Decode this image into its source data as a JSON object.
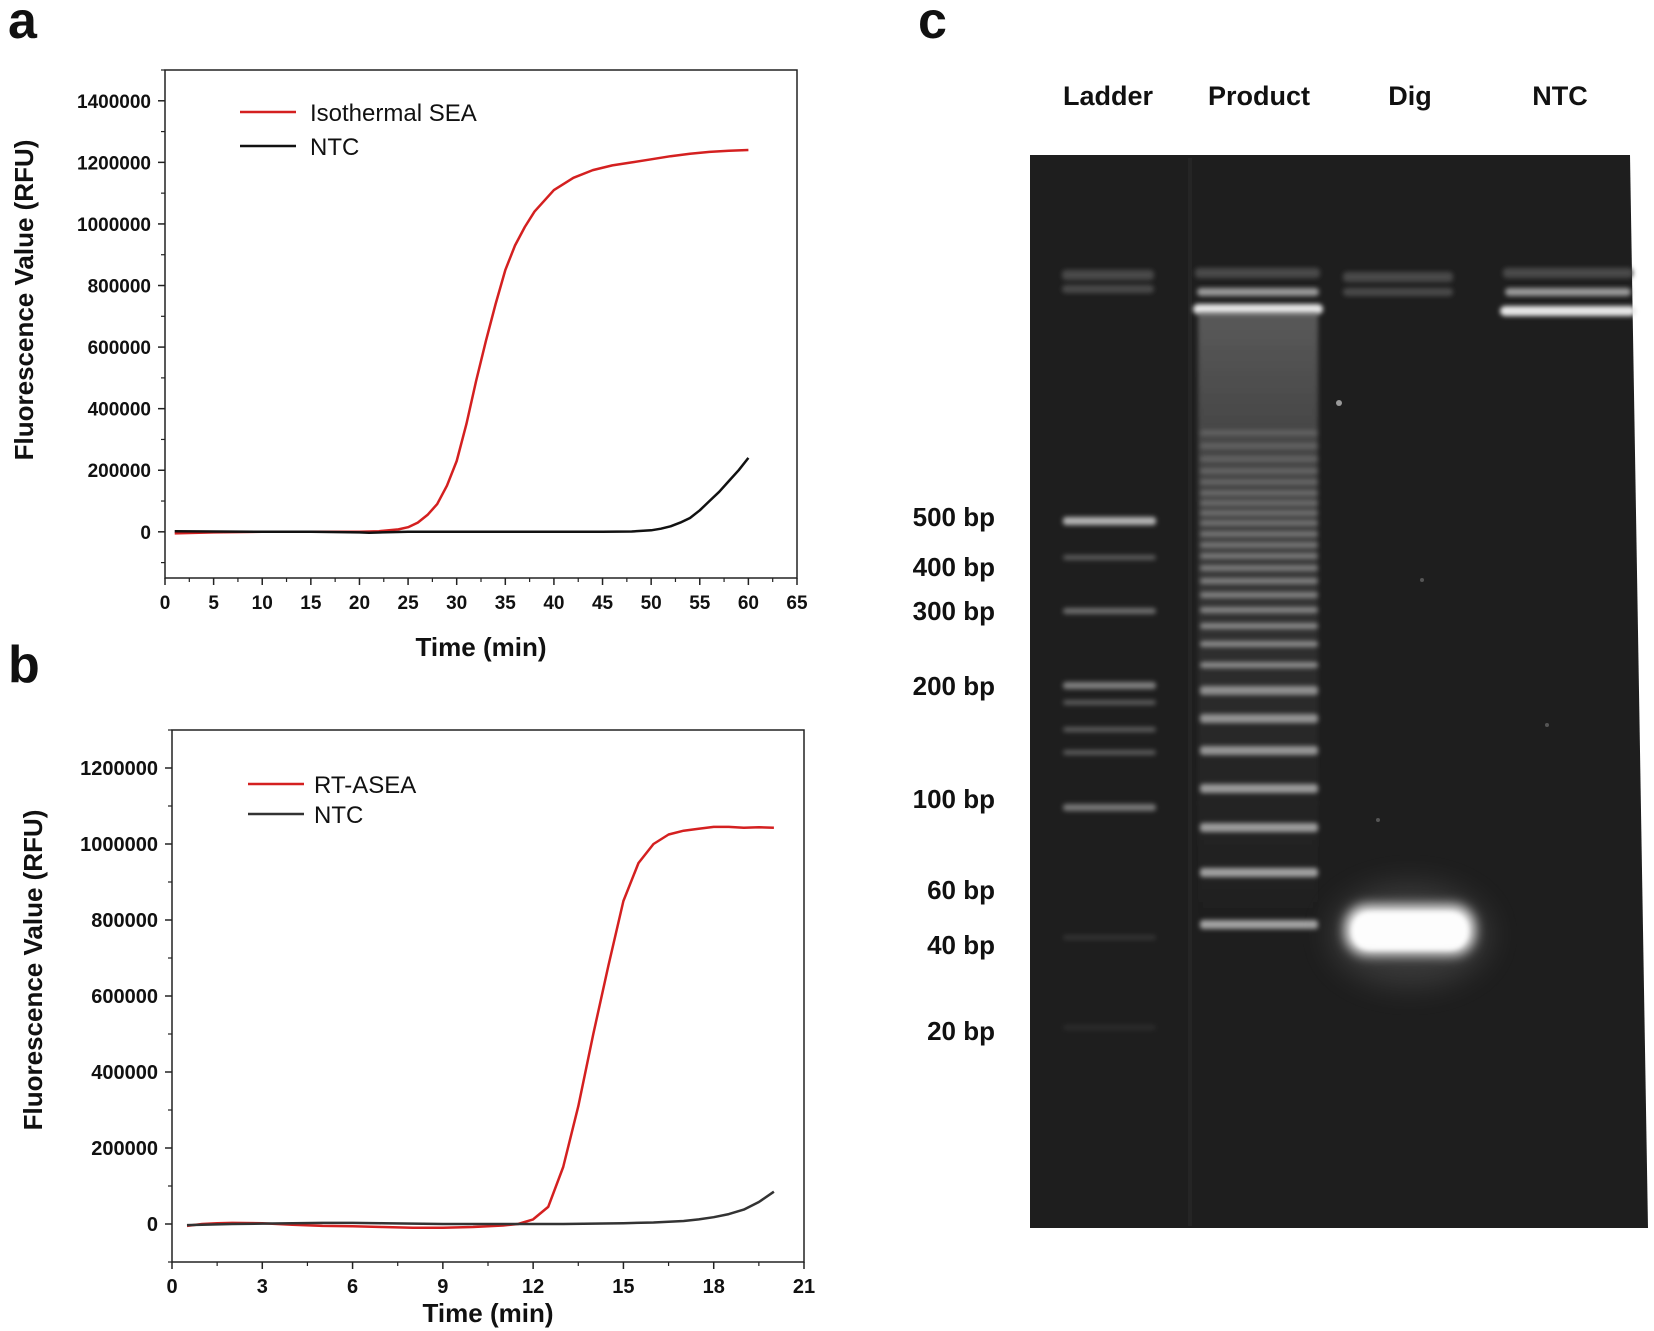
{
  "panels": {
    "a": "a",
    "b": "b",
    "c": "c"
  },
  "chart_data": [
    {
      "panel": "a",
      "type": "line",
      "xlabel": "Time (min)",
      "ylabel": "Fluorescence Value (RFU)",
      "xlim": [
        0,
        65
      ],
      "ylim": [
        -150000,
        1500000
      ],
      "xticks": [
        "0",
        "5",
        "10",
        "15",
        "20",
        "25",
        "30",
        "35",
        "40",
        "45",
        "50",
        "55",
        "60",
        "65"
      ],
      "yticks": [
        "0",
        "200000",
        "400000",
        "600000",
        "800000",
        "1000000",
        "1200000",
        "1400000"
      ],
      "legend_position": "top-left",
      "series": [
        {
          "name": "Isothermal SEA",
          "color": "#d42020",
          "x": [
            1,
            5,
            10,
            15,
            20,
            22,
            24,
            25,
            26,
            27,
            28,
            29,
            30,
            31,
            32,
            33,
            34,
            35,
            36,
            37,
            38,
            40,
            42,
            44,
            46,
            48,
            50,
            52,
            54,
            56,
            58,
            60
          ],
          "y": [
            -5000,
            -2000,
            0,
            0,
            0,
            2000,
            8000,
            15000,
            30000,
            55000,
            90000,
            150000,
            230000,
            350000,
            490000,
            620000,
            740000,
            850000,
            930000,
            990000,
            1040000,
            1110000,
            1150000,
            1175000,
            1190000,
            1200000,
            1210000,
            1220000,
            1228000,
            1234000,
            1238000,
            1240000
          ]
        },
        {
          "name": "NTC",
          "color": "#111111",
          "x": [
            1,
            5,
            10,
            15,
            20,
            21,
            25,
            30,
            35,
            40,
            45,
            48,
            50,
            51,
            52,
            53,
            54,
            55,
            56,
            57,
            58,
            59,
            60
          ],
          "y": [
            2000,
            1000,
            0,
            0,
            -2000,
            -3000,
            0,
            0,
            0,
            0,
            0,
            1000,
            5000,
            10000,
            18000,
            30000,
            45000,
            70000,
            100000,
            130000,
            165000,
            200000,
            240000
          ]
        }
      ]
    },
    {
      "panel": "b",
      "type": "line",
      "xlabel": "Time (min)",
      "ylabel": "Fluorescence Value (RFU)",
      "xlim": [
        0,
        21
      ],
      "ylim": [
        -100000,
        1300000
      ],
      "xticks": [
        "0",
        "3",
        "6",
        "9",
        "12",
        "15",
        "18",
        "21"
      ],
      "yticks": [
        "0",
        "200000",
        "400000",
        "600000",
        "800000",
        "1000000",
        "1200000"
      ],
      "legend_position": "top-left",
      "series": [
        {
          "name": "RT-ASEA",
          "color": "#d42020",
          "x": [
            0.5,
            1,
            1.5,
            2,
            3,
            4,
            5,
            6,
            7,
            8,
            9,
            10,
            11,
            11.5,
            12,
            12.5,
            13,
            13.5,
            14,
            14.5,
            15,
            15.5,
            16,
            16.5,
            17,
            17.5,
            18,
            18.5,
            19,
            19.5,
            20
          ],
          "y": [
            -5000,
            0,
            2000,
            3000,
            2000,
            -2000,
            -5000,
            -6000,
            -8000,
            -10000,
            -10000,
            -8000,
            -4000,
            0,
            12000,
            45000,
            150000,
            310000,
            500000,
            680000,
            850000,
            950000,
            1000000,
            1025000,
            1035000,
            1040000,
            1045000,
            1045000,
            1043000,
            1044000,
            1043000
          ]
        },
        {
          "name": "NTC",
          "color": "#333333",
          "x": [
            0.5,
            1,
            2,
            3,
            4,
            5,
            6,
            7,
            8,
            9,
            10,
            11,
            12,
            13,
            14,
            15,
            16,
            17,
            17.5,
            18,
            18.5,
            19,
            19.5,
            20
          ],
          "y": [
            -3000,
            -2000,
            0,
            1000,
            2000,
            3000,
            3000,
            2000,
            1000,
            0,
            0,
            0,
            0,
            0,
            1000,
            2000,
            4000,
            8000,
            12000,
            18000,
            26000,
            38000,
            58000,
            85000
          ]
        }
      ]
    }
  ],
  "gel": {
    "lanes": [
      "Ladder",
      "Product",
      "Dig",
      "NTC"
    ],
    "size_markers": [
      "500 bp",
      "400 bp",
      "300 bp",
      "200 bp",
      "100 bp",
      "60 bp",
      "40 bp",
      "20 bp"
    ]
  }
}
